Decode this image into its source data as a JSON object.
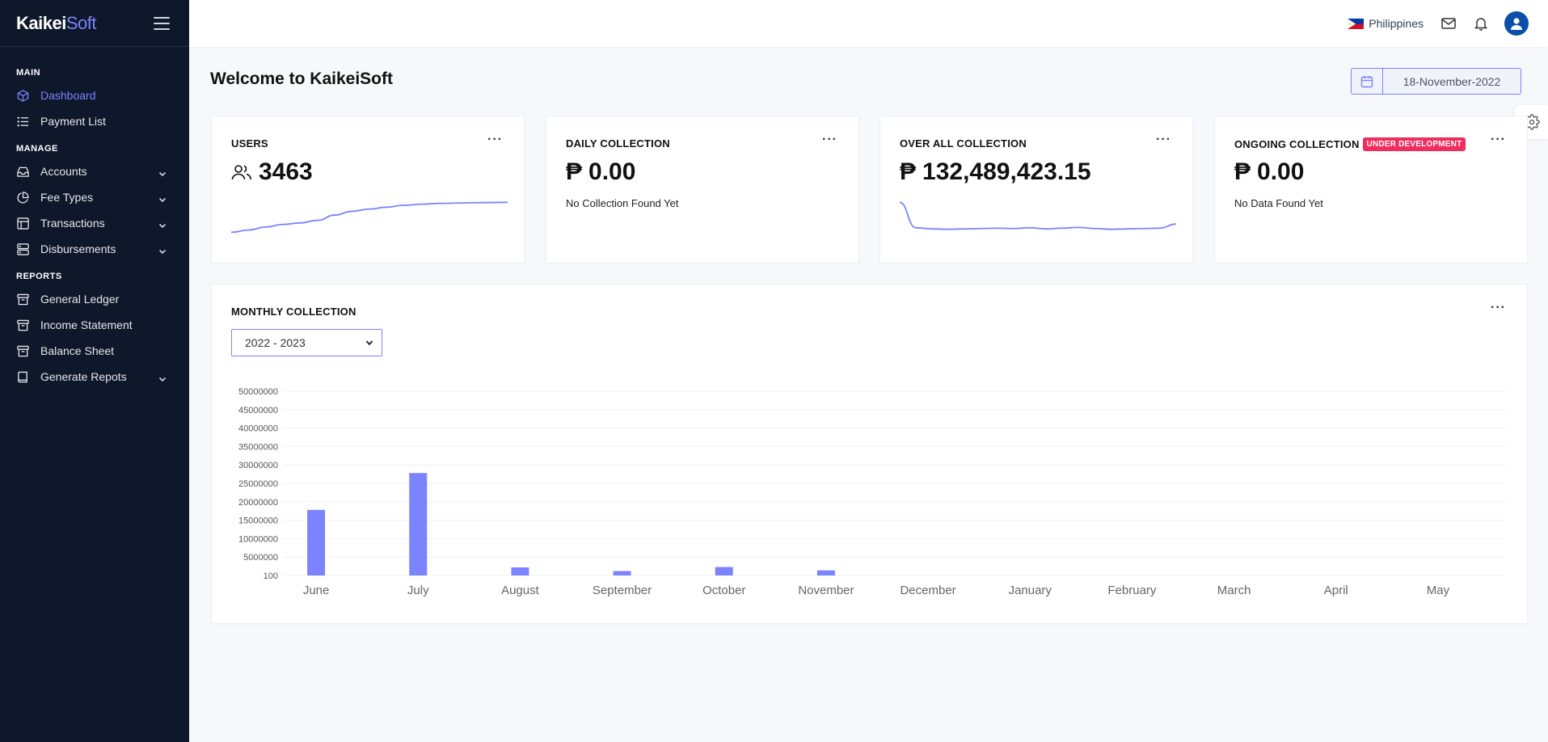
{
  "brand": {
    "part1": "Kaikei",
    "part2": "Soft"
  },
  "sidebar": {
    "sections": [
      {
        "label": "MAIN",
        "items": [
          {
            "label": "Dashboard",
            "icon": "cube-icon",
            "active": true
          },
          {
            "label": "Payment List",
            "icon": "list-icon"
          }
        ]
      },
      {
        "label": "MANAGE",
        "items": [
          {
            "label": "Accounts",
            "icon": "inbox-icon",
            "chevron": true
          },
          {
            "label": "Fee Types",
            "icon": "pie-icon",
            "chevron": true
          },
          {
            "label": "Transactions",
            "icon": "layout-icon",
            "chevron": true
          },
          {
            "label": "Disbursements",
            "icon": "server-icon",
            "chevron": true
          }
        ]
      },
      {
        "label": "REPORTS",
        "items": [
          {
            "label": "General Ledger",
            "icon": "archive-icon"
          },
          {
            "label": "Income Statement",
            "icon": "archive-icon"
          },
          {
            "label": "Balance Sheet",
            "icon": "archive-icon"
          },
          {
            "label": "Generate Repots",
            "icon": "book-icon",
            "chevron": true
          }
        ]
      }
    ]
  },
  "topbar": {
    "country": "Philippines"
  },
  "main": {
    "title": "Welcome to KaikeiSoft",
    "date": "18-November-2022"
  },
  "cards": {
    "users": {
      "title": "USERS",
      "value": "3463",
      "trend": [
        1.0,
        1.6,
        2.4,
        3.1,
        3.5,
        4.2,
        5.6,
        6.6,
        7.2,
        7.7,
        8.2,
        8.5,
        8.7,
        8.8,
        8.9,
        8.95,
        9.0
      ]
    },
    "daily": {
      "title": "DAILY COLLECTION",
      "currency": "₱",
      "value": "0.00",
      "note": "No Collection Found Yet"
    },
    "overall": {
      "title": "OVER ALL COLLECTION",
      "currency": "₱",
      "value": "132,489,423.15",
      "trend": [
        9.0,
        2.2,
        1.9,
        1.8,
        1.9,
        2.0,
        2.1,
        2.0,
        2.2,
        1.9,
        2.1,
        2.3,
        2.0,
        1.8,
        1.9,
        2.0,
        2.1,
        3.2
      ]
    },
    "ongoing": {
      "title": "ONGOING COLLECTION",
      "badge": "UNDER DEVELOPMENT",
      "currency": "₱",
      "value": "0.00",
      "note": "No Data Found Yet"
    }
  },
  "monthly": {
    "title": "MONTHLY COLLECTION",
    "year_select": "2022 - 2023"
  },
  "colors": {
    "accent": "#7c83ff",
    "sidebar": "#0f172a",
    "badge": "#ef2d5e"
  },
  "chart_data": {
    "type": "bar",
    "categories": [
      "June",
      "July",
      "August",
      "September",
      "October",
      "November",
      "December",
      "January",
      "February",
      "March",
      "April",
      "May"
    ],
    "values": [
      17800000,
      27800000,
      2200000,
      1200000,
      2300000,
      1400000,
      0,
      0,
      0,
      0,
      0,
      0
    ],
    "y_ticks": [
      "100",
      "5000000",
      "10000000",
      "15000000",
      "20000000",
      "25000000",
      "30000000",
      "35000000",
      "40000000",
      "45000000",
      "50000000"
    ],
    "ylim": [
      0,
      50000000
    ],
    "grid": true,
    "color": "#7c83ff"
  }
}
